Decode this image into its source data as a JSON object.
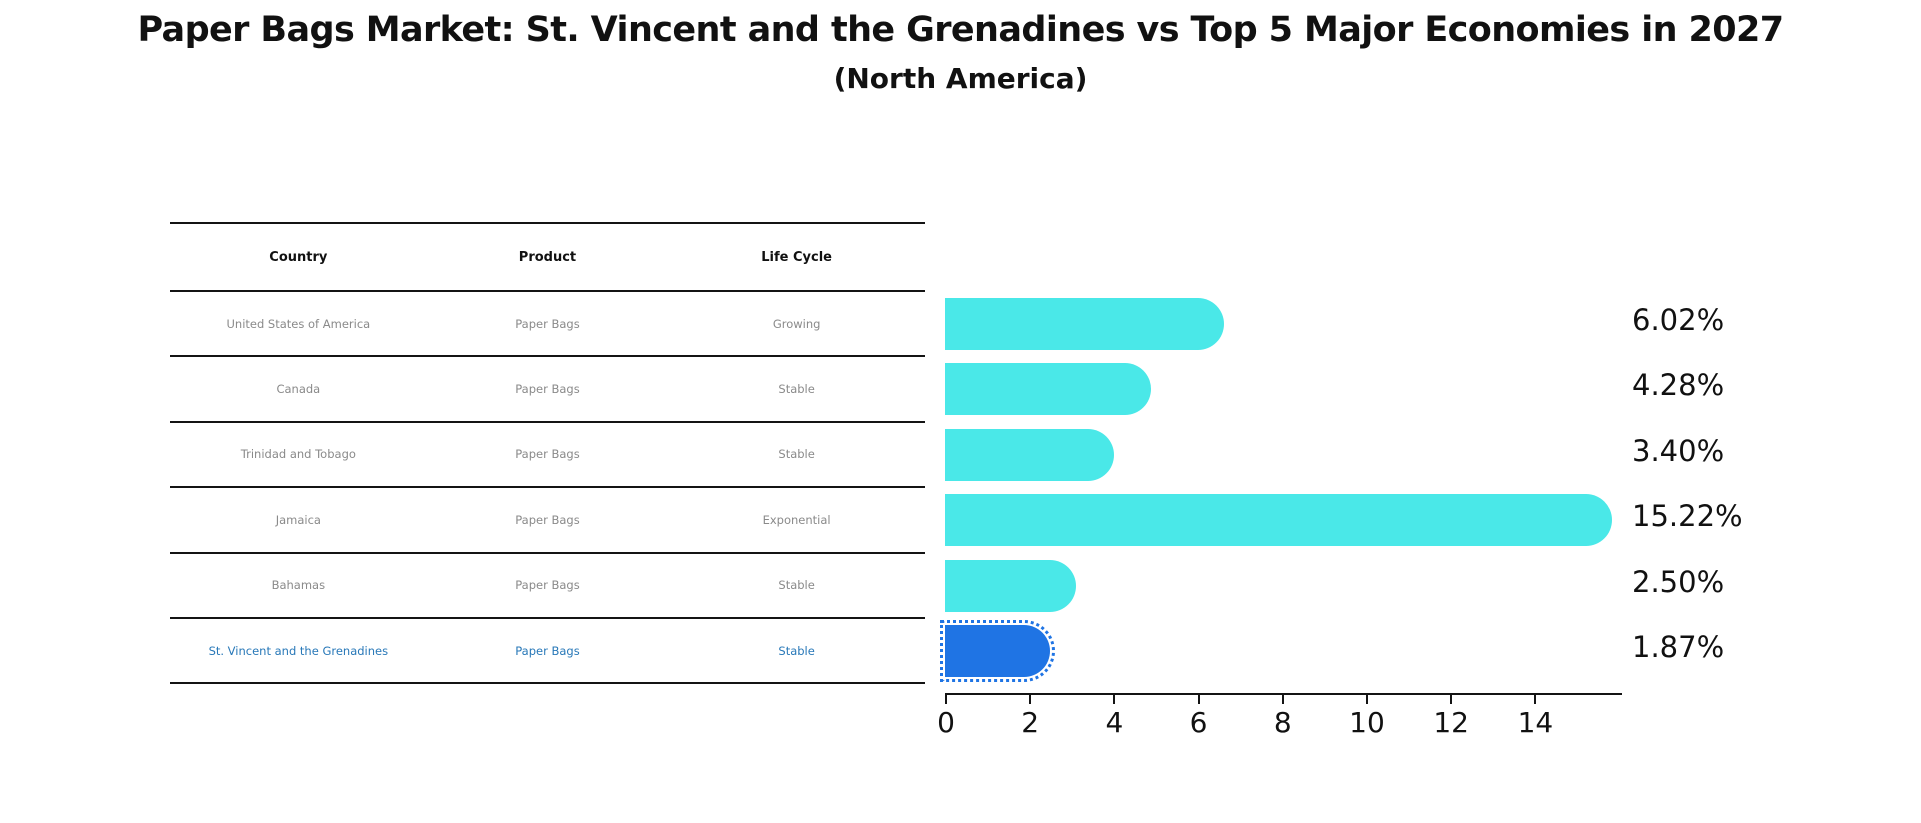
{
  "title": "Paper Bags Market: St. Vincent and the Grenadines vs Top 5 Major Economies in 2027",
  "subtitle": "(North America)",
  "table": {
    "headers": {
      "country": "Country",
      "product": "Product",
      "life_cycle": "Life Cycle"
    },
    "rows": [
      {
        "country": "United States of America",
        "product": "Paper Bags",
        "life_cycle": "Growing",
        "highlight": false
      },
      {
        "country": "Canada",
        "product": "Paper Bags",
        "life_cycle": "Stable",
        "highlight": false
      },
      {
        "country": "Trinidad and Tobago",
        "product": "Paper Bags",
        "life_cycle": "Stable",
        "highlight": false
      },
      {
        "country": "Jamaica",
        "product": "Paper Bags",
        "life_cycle": "Exponential",
        "highlight": false
      },
      {
        "country": "Bahamas",
        "product": "Paper Bags",
        "life_cycle": "Stable",
        "highlight": false
      },
      {
        "country": "St. Vincent and the Grenadines",
        "product": "Paper Bags",
        "life_cycle": "Stable",
        "highlight": true
      }
    ]
  },
  "chart_data": {
    "type": "bar",
    "orientation": "horizontal",
    "title": "Paper Bags Market: St. Vincent and the Grenadines vs Top 5 Major Economies in 2027 (North America)",
    "categories": [
      "United States of America",
      "Canada",
      "Trinidad and Tobago",
      "Jamaica",
      "Bahamas",
      "St. Vincent and the Grenadines"
    ],
    "values": [
      6.02,
      4.28,
      3.4,
      15.22,
      2.5,
      1.87
    ],
    "value_labels": [
      "6.02%",
      "4.28%",
      "3.40%",
      "15.22%",
      "2.50%",
      "1.87%"
    ],
    "xlabel": "",
    "ylabel": "",
    "xlim": [
      0,
      16
    ],
    "xticks": [
      0,
      2,
      4,
      6,
      8,
      10,
      12,
      14
    ],
    "grid": false,
    "legend": false,
    "bar_color": "#4AE8E8",
    "highlight_color": "#1F74E4",
    "highlight_index": 5
  },
  "colors": {
    "background": "#FFFFFF",
    "bar_cyan": "#4AE8E8",
    "bar_blue": "#1F74E4",
    "link_blue": "#2878B8",
    "muted_text": "#8A8A8A",
    "line_black": "#141414"
  }
}
